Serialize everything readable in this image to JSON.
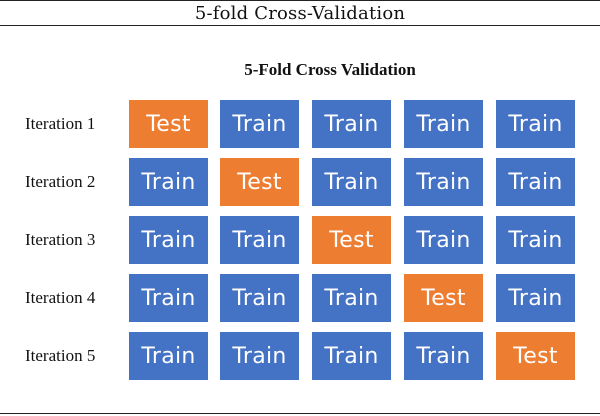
{
  "caption": "5-fold Cross-Validation",
  "title": "5-Fold Cross Validation",
  "colors": {
    "train": "#4472C4",
    "test": "#ED7D31"
  },
  "iterations": [
    {
      "label": "Iteration 1",
      "folds": [
        "Test",
        "Train",
        "Train",
        "Train",
        "Train"
      ]
    },
    {
      "label": "Iteration 2",
      "folds": [
        "Train",
        "Test",
        "Train",
        "Train",
        "Train"
      ]
    },
    {
      "label": "Iteration 3",
      "folds": [
        "Train",
        "Train",
        "Test",
        "Train",
        "Train"
      ]
    },
    {
      "label": "Iteration 4",
      "folds": [
        "Train",
        "Train",
        "Train",
        "Test",
        "Train"
      ]
    },
    {
      "label": "Iteration 5",
      "folds": [
        "Train",
        "Train",
        "Train",
        "Train",
        "Test"
      ]
    }
  ]
}
